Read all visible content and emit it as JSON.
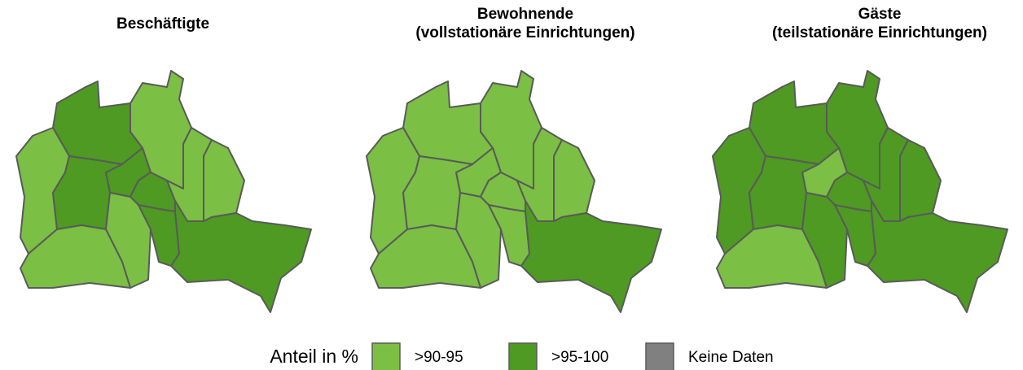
{
  "panels": [
    {
      "title": "Beschäftigte",
      "regions": [
        ">95-100",
        ">90-95",
        ">90-95",
        ">95-100",
        ">95-100",
        ">90-95",
        ">90-95",
        ">95-100",
        ">90-95",
        ">95-100",
        ">95-100",
        ">90-95"
      ]
    },
    {
      "title": "Bewohnende",
      "subtitle": "(vollstationäre Einrichtungen)",
      "regions": [
        ">90-95",
        ">90-95",
        ">90-95",
        ">90-95",
        ">90-95",
        ">90-95",
        ">90-95",
        ">90-95",
        ">90-95",
        ">90-95",
        ">95-100",
        ">90-95"
      ]
    },
    {
      "title": "Gäste",
      "subtitle": "(teilstationäre Einrichtungen)",
      "regions": [
        ">95-100",
        ">95-100",
        ">95-100",
        ">90-95",
        ">95-100",
        ">95-100",
        ">95-100",
        ">95-100",
        ">95-100",
        ">95-100",
        ">95-100",
        ">90-95"
      ]
    }
  ],
  "legend": {
    "title": "Anteil in %",
    "items": [
      {
        "name": ">90-95",
        "color": "#7bbf44"
      },
      {
        "name": ">95-100",
        "color": "#4e9a22"
      },
      {
        "name": "Keine Daten",
        "color": "#808080"
      }
    ]
  }
}
